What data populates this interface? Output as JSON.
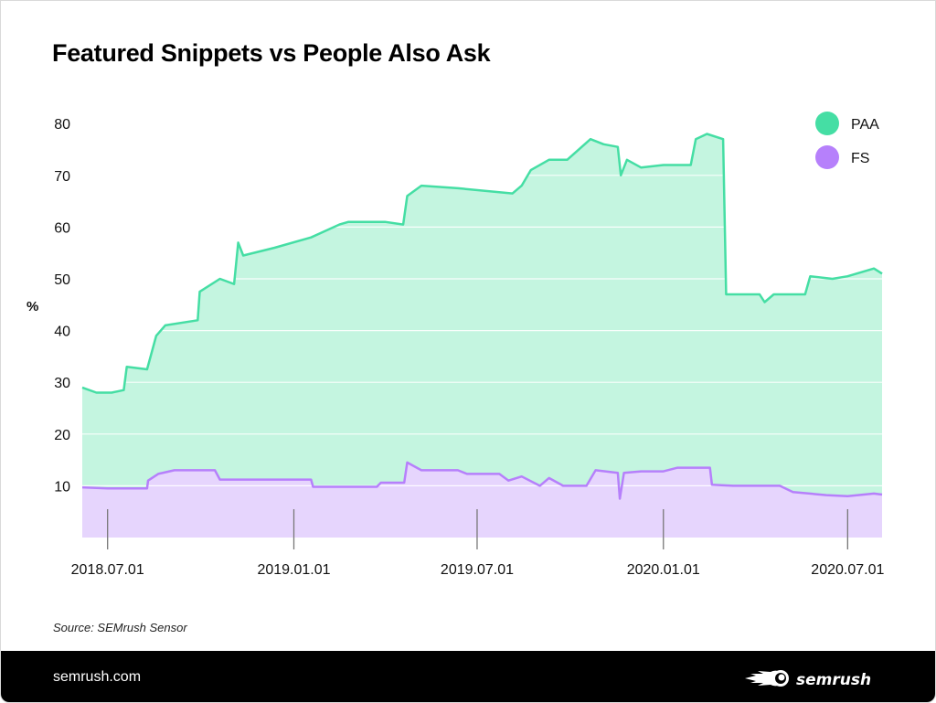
{
  "title": "Featured Snippets vs People Also Ask",
  "source": "Source: SEMrush Sensor",
  "footer": {
    "url": "semrush.com",
    "logo": "SEMRUSH"
  },
  "colors": {
    "paa_line": "#45dea4",
    "paa_fill": "#c4f5e0",
    "fs_line": "#b680fb",
    "fs_fill": "#e6d5fd"
  },
  "chart_data": {
    "type": "area",
    "title": "Featured Snippets vs People Also Ask",
    "xlabel": "",
    "ylabel": "%",
    "ylim": [
      0,
      82
    ],
    "yticks": [
      10,
      20,
      30,
      40,
      50,
      60,
      70,
      80
    ],
    "xlim": [
      "2018-06-06",
      "2020-08-04"
    ],
    "xticks": [
      {
        "date": "2018-07-01",
        "label": "2018.07.01"
      },
      {
        "date": "2019-01-01",
        "label": "2019.01.01"
      },
      {
        "date": "2019-07-01",
        "label": "2019.07.01"
      },
      {
        "date": "2020-01-01",
        "label": "2020.01.01"
      },
      {
        "date": "2020-07-01",
        "label": "2020.07.01"
      }
    ],
    "grid": true,
    "legend": "top-right",
    "series": [
      {
        "name": "PAA",
        "color": "#45dea4",
        "points": [
          [
            "2018-06-06",
            29
          ],
          [
            "2018-06-20",
            28
          ],
          [
            "2018-07-05",
            28
          ],
          [
            "2018-07-17",
            28.5
          ],
          [
            "2018-07-20",
            33
          ],
          [
            "2018-08-09",
            32.5
          ],
          [
            "2018-08-18",
            39
          ],
          [
            "2018-08-27",
            41
          ],
          [
            "2018-09-28",
            42
          ],
          [
            "2018-09-30",
            47.5
          ],
          [
            "2018-10-20",
            50
          ],
          [
            "2018-11-03",
            49
          ],
          [
            "2018-11-07",
            57
          ],
          [
            "2018-11-12",
            54.5
          ],
          [
            "2018-12-13",
            56
          ],
          [
            "2019-01-18",
            58
          ],
          [
            "2019-02-15",
            60.5
          ],
          [
            "2019-02-24",
            61
          ],
          [
            "2019-04-01",
            61
          ],
          [
            "2019-04-19",
            60.5
          ],
          [
            "2019-04-23",
            66
          ],
          [
            "2019-05-07",
            68
          ],
          [
            "2019-06-12",
            67.5
          ],
          [
            "2019-08-05",
            66.5
          ],
          [
            "2019-08-14",
            68
          ],
          [
            "2019-08-23",
            71
          ],
          [
            "2019-09-10",
            73
          ],
          [
            "2019-09-28",
            73
          ],
          [
            "2019-10-21",
            77
          ],
          [
            "2019-11-03",
            76
          ],
          [
            "2019-11-17",
            75.5
          ],
          [
            "2019-11-20",
            70
          ],
          [
            "2019-11-26",
            73
          ],
          [
            "2019-12-10",
            71.5
          ],
          [
            "2020-01-01",
            72
          ],
          [
            "2020-01-15",
            72
          ],
          [
            "2020-01-28",
            72
          ],
          [
            "2020-02-02",
            77
          ],
          [
            "2020-02-13",
            78
          ],
          [
            "2020-02-29",
            77
          ],
          [
            "2020-03-03",
            47
          ],
          [
            "2020-04-05",
            47
          ],
          [
            "2020-04-10",
            45.5
          ],
          [
            "2020-04-19",
            47
          ],
          [
            "2020-05-20",
            47
          ],
          [
            "2020-05-25",
            50.5
          ],
          [
            "2020-06-16",
            50
          ],
          [
            "2020-07-01",
            50.5
          ],
          [
            "2020-07-27",
            52
          ],
          [
            "2020-08-04",
            51
          ]
        ]
      },
      {
        "name": "FS",
        "color": "#b680fb",
        "points": [
          [
            "2018-06-06",
            9.7
          ],
          [
            "2018-07-01",
            9.5
          ],
          [
            "2018-08-09",
            9.5
          ],
          [
            "2018-08-10",
            11
          ],
          [
            "2018-08-20",
            12.3
          ],
          [
            "2018-09-05",
            13
          ],
          [
            "2018-10-15",
            13
          ],
          [
            "2018-10-20",
            11.2
          ],
          [
            "2019-01-18",
            11.2
          ],
          [
            "2019-01-20",
            9.8
          ],
          [
            "2019-03-24",
            9.8
          ],
          [
            "2019-03-28",
            10.6
          ],
          [
            "2019-04-20",
            10.6
          ],
          [
            "2019-04-23",
            14.5
          ],
          [
            "2019-05-07",
            13
          ],
          [
            "2019-06-12",
            13
          ],
          [
            "2019-06-21",
            12.3
          ],
          [
            "2019-07-23",
            12.3
          ],
          [
            "2019-08-01",
            11
          ],
          [
            "2019-08-14",
            11.8
          ],
          [
            "2019-09-01",
            10
          ],
          [
            "2019-09-10",
            11.5
          ],
          [
            "2019-09-24",
            10
          ],
          [
            "2019-10-17",
            10
          ],
          [
            "2019-10-26",
            13
          ],
          [
            "2019-11-17",
            12.5
          ],
          [
            "2019-11-19",
            7.5
          ],
          [
            "2019-11-23",
            12.5
          ],
          [
            "2019-12-10",
            12.8
          ],
          [
            "2020-01-01",
            12.8
          ],
          [
            "2020-01-15",
            13.5
          ],
          [
            "2020-02-16",
            13.5
          ],
          [
            "2020-02-18",
            10.2
          ],
          [
            "2020-03-10",
            10
          ],
          [
            "2020-04-25",
            10
          ],
          [
            "2020-05-08",
            8.8
          ],
          [
            "2020-06-10",
            8.2
          ],
          [
            "2020-07-01",
            8
          ],
          [
            "2020-07-27",
            8.5
          ],
          [
            "2020-08-04",
            8.3
          ]
        ]
      }
    ]
  }
}
